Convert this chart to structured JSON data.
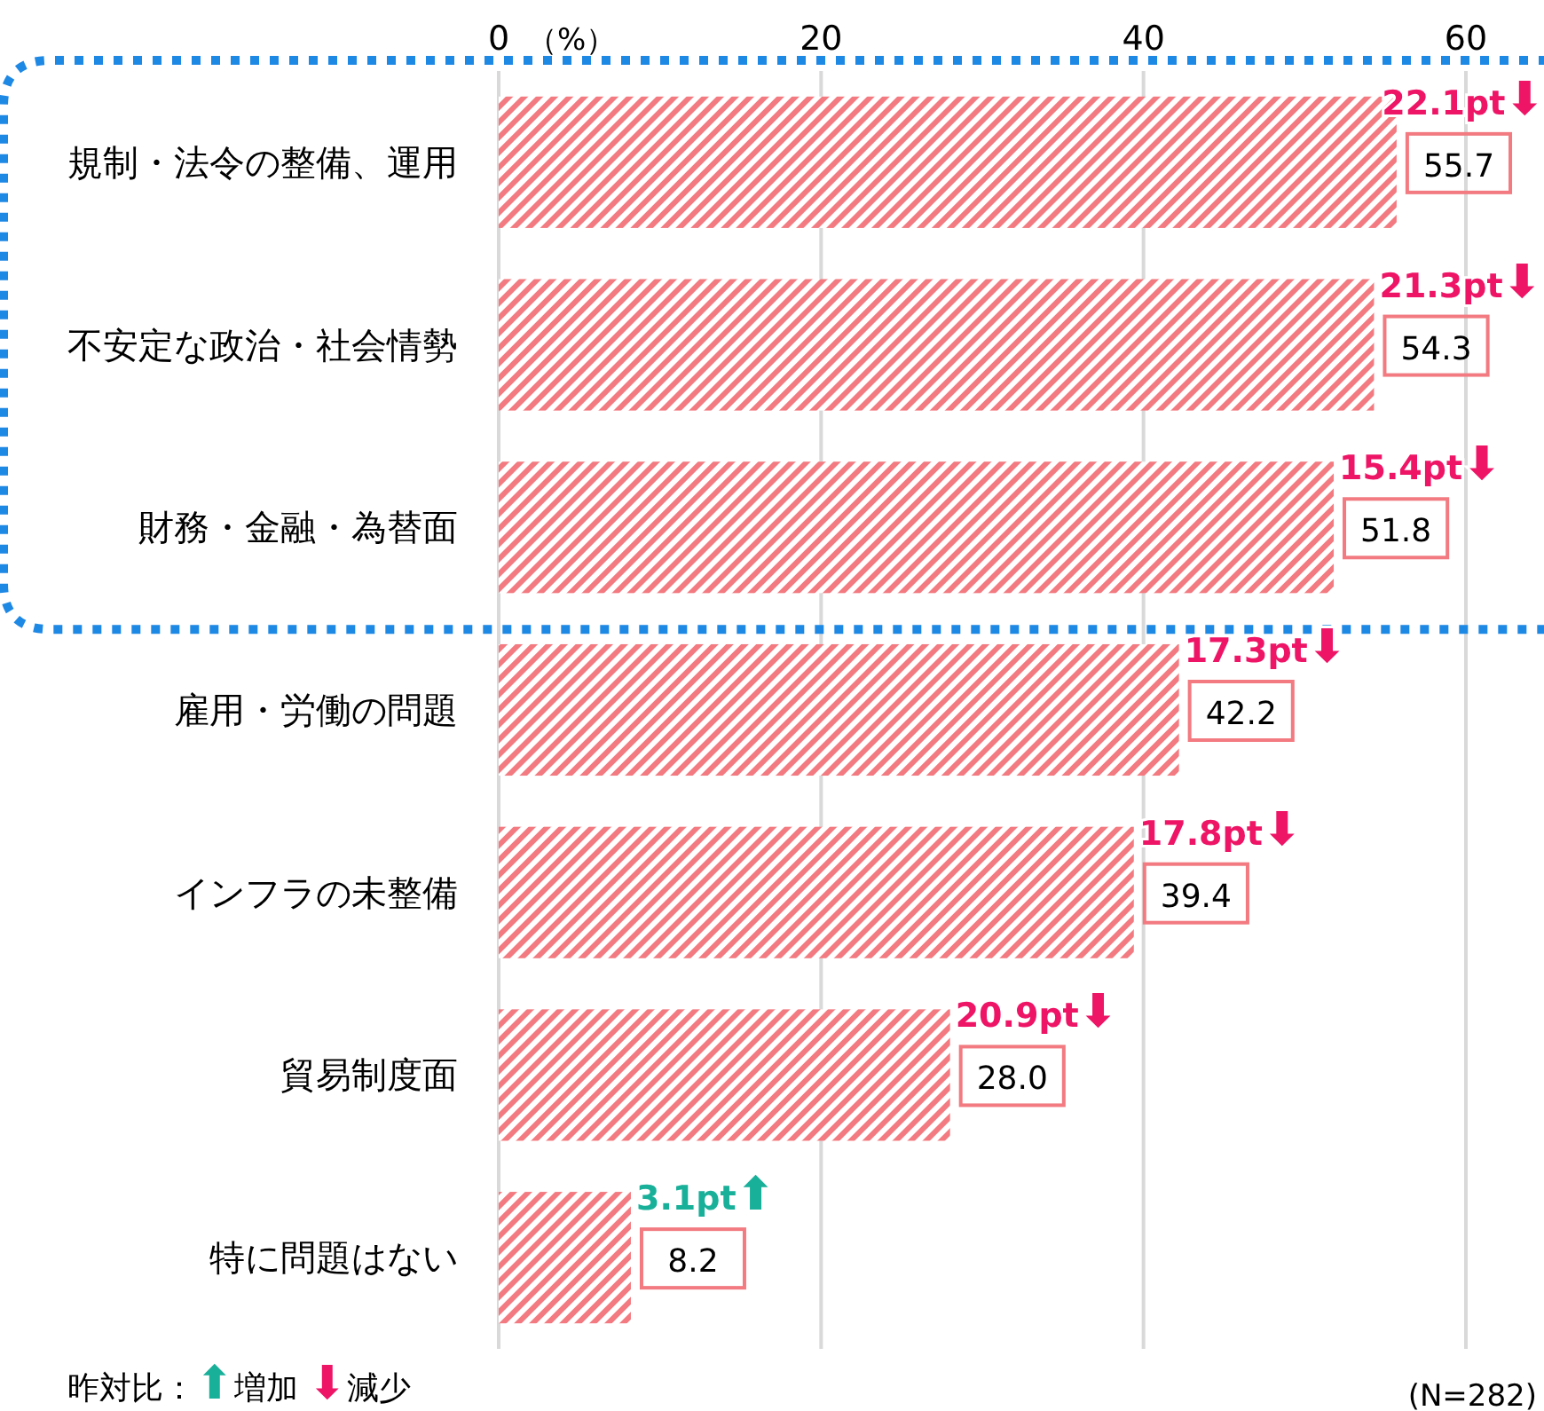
{
  "chart_data": {
    "type": "bar",
    "orientation": "horizontal",
    "xlabel": "（%）",
    "categories": [
      "規制・法令の整備、運用",
      "不安定な政治・社会情勢",
      "財務・金融・為替面",
      "雇用・労働の問題",
      "インフラの未整備",
      "貿易制度面",
      "特に問題はない"
    ],
    "values": [
      55.7,
      54.3,
      51.8,
      42.2,
      39.4,
      28.0,
      8.2
    ],
    "value_labels": [
      "55.7",
      "54.3",
      "51.8",
      "42.2",
      "39.4",
      "28.0",
      "8.2"
    ],
    "color": "#f27a80",
    "xlim": [
      0,
      60
    ],
    "xticks": [
      0,
      20,
      40,
      60
    ],
    "grid": "x",
    "annotations": [
      {
        "text": "22.1pt⬇",
        "x": 55.7,
        "y": "規制・法令の整備、運用"
      },
      {
        "text": "21.3pt⬇",
        "x": 54.3,
        "y": "不安定な政治・社会情勢"
      },
      {
        "text": "15.4pt⬇",
        "x": 51.8,
        "y": "財務・金融・為替面"
      },
      {
        "text": "17.3pt⬇",
        "x": 42.2,
        "y": "雇用・労働の問題"
      },
      {
        "text": "17.8pt⬇",
        "x": 39.4,
        "y": "インフラの未整備"
      },
      {
        "text": "20.9pt⬇",
        "x": 28.0,
        "y": "貿易制度面"
      },
      {
        "text": "3.1pt⬆",
        "x": 8.2,
        "y": "特に問題はない"
      },
      "昨対比：⬆増加 ⬇減少",
      "(N=282)"
    ]
  }
}
